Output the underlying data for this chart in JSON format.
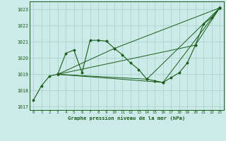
{
  "bg_color": "#cceae7",
  "grid_color": "#aad4d0",
  "line_color": "#1a5c1a",
  "title": "Graphe pression niveau de la mer (hPa)",
  "xlim": [
    -0.5,
    23.5
  ],
  "ylim": [
    1016.8,
    1023.5
  ],
  "yticks": [
    1017,
    1018,
    1019,
    1020,
    1021,
    1022,
    1023
  ],
  "xticks": [
    0,
    1,
    2,
    3,
    4,
    5,
    6,
    7,
    8,
    9,
    10,
    11,
    12,
    13,
    14,
    15,
    16,
    17,
    18,
    19,
    20,
    21,
    22,
    23
  ],
  "series": [
    {
      "x": [
        0,
        1,
        2,
        3,
        4,
        5,
        6,
        7,
        8,
        9,
        10,
        11,
        12,
        13,
        14,
        15,
        16,
        17,
        18,
        19,
        20,
        21,
        22,
        23
      ],
      "y": [
        1017.4,
        1018.3,
        1018.9,
        1019.0,
        1020.3,
        1020.5,
        1019.1,
        1021.1,
        1021.1,
        1021.05,
        1020.6,
        1020.2,
        1019.7,
        1019.3,
        1018.7,
        1018.6,
        1018.5,
        1018.8,
        1019.1,
        1019.7,
        1020.8,
        1022.1,
        1022.5,
        1023.1
      ]
    },
    {
      "x": [
        3,
        10,
        23
      ],
      "y": [
        1019.0,
        1020.6,
        1023.1
      ]
    },
    {
      "x": [
        3,
        14,
        23
      ],
      "y": [
        1019.0,
        1018.7,
        1023.1
      ]
    },
    {
      "x": [
        3,
        16,
        23
      ],
      "y": [
        1019.0,
        1018.5,
        1023.1
      ]
    },
    {
      "x": [
        3,
        20,
        23
      ],
      "y": [
        1019.0,
        1020.8,
        1023.1
      ]
    }
  ]
}
